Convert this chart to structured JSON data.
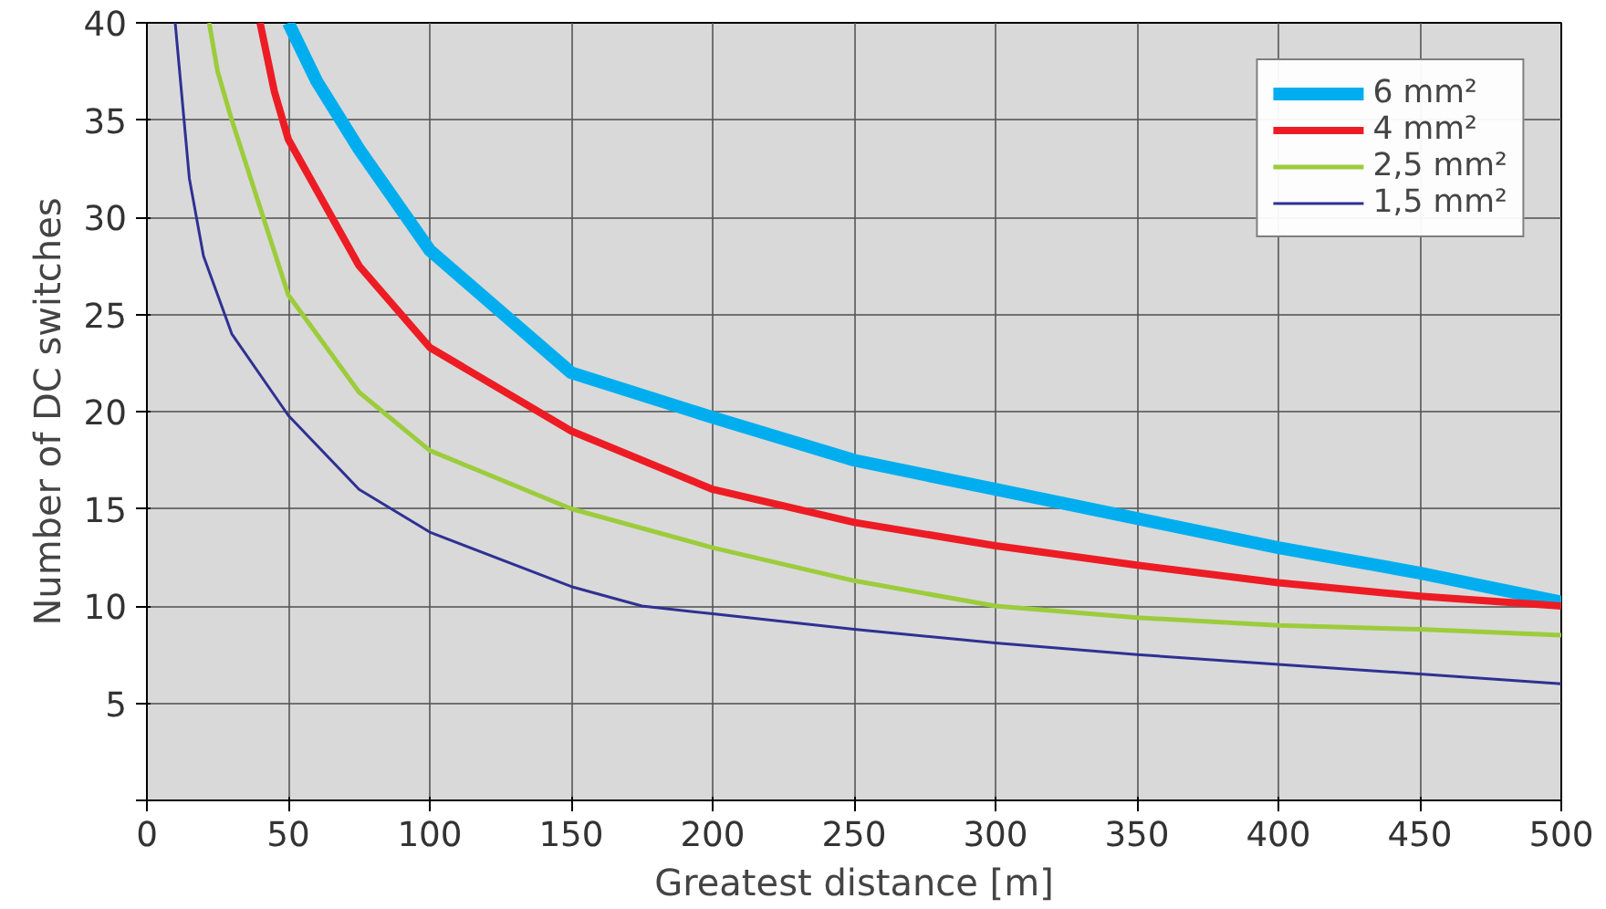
{
  "chart_data": {
    "type": "line",
    "xlabel": "Greatest distance [m]",
    "ylabel": "Number of DC switches",
    "xlim": [
      0,
      500
    ],
    "ylim": [
      0,
      40
    ],
    "xticks": [
      0,
      50,
      100,
      150,
      200,
      250,
      300,
      350,
      400,
      450,
      500
    ],
    "yticks": [
      {
        "value": 0,
        "label": null
      },
      5,
      10,
      15,
      20,
      25,
      30,
      35,
      40
    ],
    "grid": true,
    "legend": "top right",
    "marker": "none",
    "line_style": "solid",
    "series": [
      {
        "name": "6 mm²",
        "color": "#00aeef",
        "x": [
          50,
          60,
          75,
          100,
          150,
          200,
          250,
          300,
          350,
          400,
          450,
          500
        ],
        "values": [
          40,
          37,
          33.5,
          28.3,
          22,
          19.7,
          17.5,
          16,
          14.5,
          13,
          11.7,
          10.2
        ]
      },
      {
        "name": "4 mm²",
        "color": "#ed1c24",
        "x": [
          40,
          45,
          50,
          75,
          100,
          150,
          200,
          250,
          300,
          350,
          400,
          450,
          500
        ],
        "values": [
          40,
          36.5,
          34,
          27.5,
          23.3,
          19,
          16,
          14.3,
          13.1,
          12.1,
          11.2,
          10.5,
          10
        ]
      },
      {
        "name": "2,5 mm²",
        "color": "#9ccc3c",
        "x": [
          22,
          25,
          30,
          50,
          75,
          100,
          150,
          200,
          250,
          300,
          350,
          400,
          450,
          500
        ],
        "values": [
          40,
          37.5,
          35,
          26,
          21,
          18,
          15,
          13,
          11.3,
          10,
          9.4,
          9,
          8.8,
          8.5
        ]
      },
      {
        "name": "1,5 mm²",
        "color": "#2e3192",
        "x": [
          10,
          15,
          20,
          30,
          50,
          75,
          100,
          150,
          175,
          200,
          250,
          300,
          350,
          400,
          450,
          500
        ],
        "values": [
          40,
          32,
          28,
          24,
          19.8,
          16,
          13.8,
          11,
          10,
          9.6,
          8.8,
          8.1,
          7.5,
          7,
          6.5,
          6
        ]
      }
    ]
  }
}
